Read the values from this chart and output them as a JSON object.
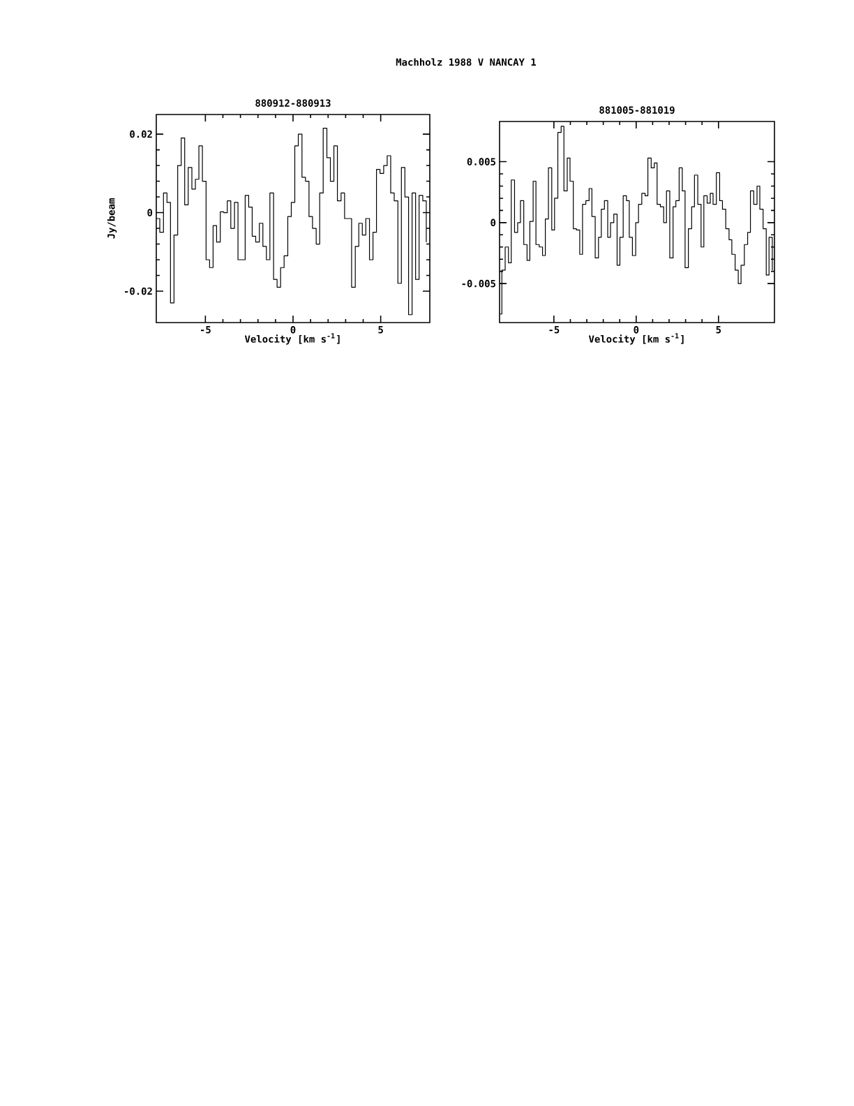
{
  "chart_data": [
    {
      "type": "step",
      "title": "880912-880913",
      "xlabel": "Velocity [km s$^{-1}$]",
      "ylabel": "Jy/beam",
      "color": "#000000",
      "annotations": [
        "Machholz 1988 V   NANCAY      1"
      ],
      "xlim": [
        -7.8,
        7.8
      ],
      "ylim": [
        -0.028,
        0.025
      ],
      "xticks": [
        -5,
        0,
        5
      ],
      "yticks": [
        -0.02,
        0,
        0.02
      ],
      "x": [
        -7.8,
        -7.6,
        -7.39,
        -7.19,
        -6.99,
        -6.79,
        -6.58,
        -6.38,
        -6.18,
        -5.98,
        -5.77,
        -5.57,
        -5.37,
        -5.17,
        -4.96,
        -4.76,
        -4.56,
        -4.36,
        -4.15,
        -3.95,
        -3.75,
        -3.55,
        -3.34,
        -3.14,
        -2.94,
        -2.73,
        -2.53,
        -2.33,
        -2.13,
        -1.92,
        -1.72,
        -1.52,
        -1.32,
        -1.11,
        -0.91,
        -0.71,
        -0.51,
        -0.3,
        -0.1,
        0.1,
        0.3,
        0.51,
        0.71,
        0.91,
        1.11,
        1.32,
        1.52,
        1.72,
        1.93,
        2.13,
        2.33,
        2.53,
        2.74,
        2.94,
        3.14,
        3.34,
        3.55,
        3.75,
        3.95,
        4.15,
        4.36,
        4.56,
        4.76,
        4.96,
        5.17,
        5.37,
        5.57,
        5.77,
        5.98,
        6.18,
        6.38,
        6.59,
        6.79,
        6.99,
        7.19,
        7.4,
        7.6
      ],
      "values": [
        -0.0015,
        -0.005,
        0.005,
        0.0026,
        -0.023,
        -0.0057,
        0.012,
        0.019,
        0.002,
        0.0115,
        0.006,
        0.0085,
        0.017,
        0.008,
        -0.012,
        -0.014,
        -0.0033,
        -0.0075,
        0.0002,
        0,
        0.003,
        -0.004,
        0.0026,
        -0.012,
        -0.012,
        0.0044,
        0.0014,
        -0.006,
        -0.0075,
        -0.0027,
        -0.0086,
        -0.012,
        0.005,
        -0.017,
        -0.019,
        -0.014,
        -0.011,
        -0.001,
        0.0026,
        0.017,
        0.02,
        0.009,
        0.008,
        -0.001,
        -0.004,
        -0.008,
        0.005,
        0.0215,
        0.014,
        0.008,
        0.017,
        0.003,
        0.005,
        -0.0015,
        -0.0015,
        -0.019,
        -0.0086,
        -0.0027,
        -0.0057,
        -0.0015,
        -0.012,
        -0.005,
        0.011,
        0.01,
        0.012,
        0.0145,
        0.005,
        0.003,
        -0.018,
        0.0115,
        0.004,
        -0.026,
        0.005,
        -0.017,
        0.0044,
        0.003,
        -0.0075
      ]
    },
    {
      "type": "step",
      "title": "881005-881019",
      "xlabel": "Velocity [km s$^{-1}$]",
      "color": "#000000",
      "xlim": [
        -8.3,
        8.4
      ],
      "ylim": [
        -0.0082,
        0.0083
      ],
      "xticks": [
        -5,
        0,
        5
      ],
      "yticks": [
        -0.005,
        0,
        0.005
      ],
      "x": [
        -8.3,
        -8.16,
        -7.96,
        -7.76,
        -7.59,
        -7.39,
        -7.2,
        -7.03,
        -6.83,
        -6.63,
        -6.46,
        -6.26,
        -6.09,
        -5.89,
        -5.69,
        -5.52,
        -5.33,
        -5.13,
        -4.96,
        -4.76,
        -4.56,
        -4.39,
        -4.19,
        -4.02,
        -3.82,
        -3.63,
        -3.43,
        -3.26,
        -3.06,
        -2.86,
        -2.69,
        -2.49,
        -2.29,
        -2.12,
        -1.93,
        -1.73,
        -1.56,
        -1.36,
        -1.16,
        -0.99,
        -0.79,
        -0.59,
        -0.42,
        -0.23,
        -0.03,
        0.14,
        0.34,
        0.54,
        0.71,
        0.91,
        1.1,
        1.27,
        1.47,
        1.67,
        1.84,
        2.04,
        2.24,
        2.41,
        2.61,
        2.8,
        2.97,
        3.17,
        3.37,
        3.54,
        3.74,
        3.94,
        4.11,
        4.31,
        4.5,
        4.67,
        4.87,
        5.07,
        5.24,
        5.44,
        5.64,
        5.81,
        6.01,
        6.2,
        6.37,
        6.57,
        6.77,
        6.94,
        7.14,
        7.34,
        7.51,
        7.71,
        7.9,
        8.07,
        8.27
      ],
      "values": [
        -0.0075,
        -0.0039,
        -0.002,
        -0.0033,
        0.0035,
        -0.0008,
        0,
        0.0018,
        -0.0018,
        -0.0031,
        0.0001,
        0.0034,
        -0.0018,
        -0.002,
        -0.0027,
        0.0003,
        0.0045,
        -0.0006,
        0.002,
        0.0074,
        0.0079,
        0.0026,
        0.0053,
        0.0034,
        -0.0005,
        -0.0006,
        -0.0026,
        0.0015,
        0.0018,
        0.0028,
        0.0005,
        -0.0029,
        -0.0012,
        0.0011,
        0.0018,
        -0.0012,
        0,
        0.0007,
        -0.0035,
        -0.0012,
        0.0022,
        0.0018,
        -0.0012,
        -0.0027,
        0,
        0.0015,
        0.0024,
        0.0022,
        0.0053,
        0.0045,
        0.0049,
        0.0015,
        0.0013,
        0,
        0.0026,
        -0.0029,
        0.0013,
        0.0018,
        0.0045,
        0.0026,
        -0.0037,
        -0.0005,
        0.0013,
        0.0039,
        0.0015,
        -0.002,
        0.0022,
        0.0016,
        0.0024,
        0.0015,
        0.0041,
        0.0018,
        0.0011,
        -0.0005,
        -0.0014,
        -0.0026,
        -0.0039,
        -0.005,
        -0.0035,
        -0.0018,
        -0.0008,
        0.0026,
        0.0015,
        0.003,
        0.0011,
        -0.0005,
        -0.0043,
        -0.0012,
        -0.0039
      ]
    }
  ]
}
